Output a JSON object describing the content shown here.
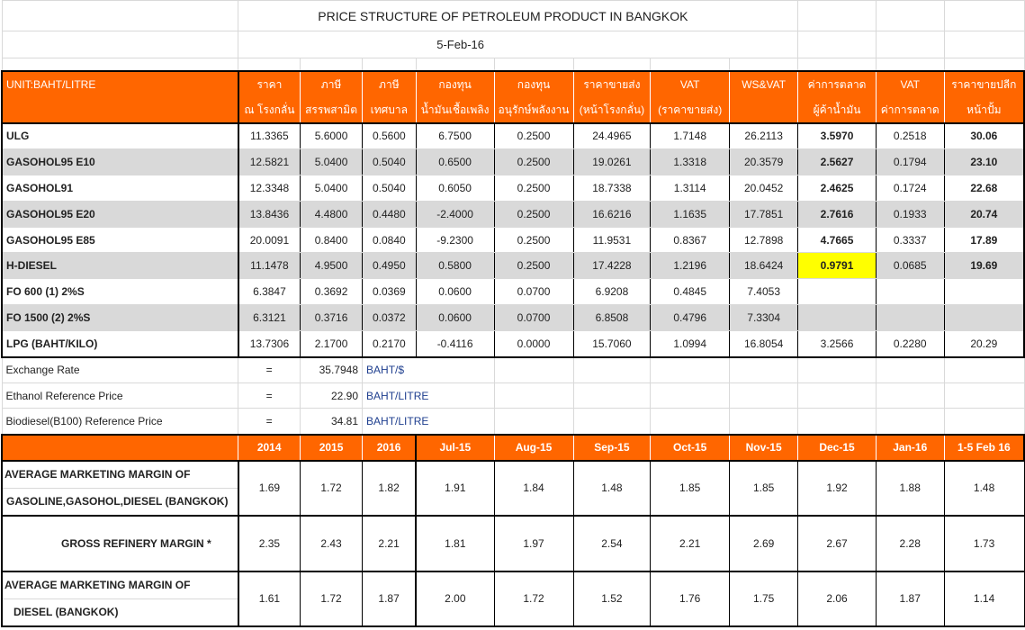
{
  "title": "PRICE STRUCTURE OF PETROLEUM PRODUCT IN BANGKOK",
  "date": "5-Feb-16",
  "colors": {
    "header": "#ff6600",
    "stripe": "#d9d9d9",
    "highlight": "#ffff00"
  },
  "price_table": {
    "headers": [
      [
        "UNIT:BAHT/LITRE",
        ""
      ],
      [
        "ราคา",
        "ณ โรงกลั่น"
      ],
      [
        "ภาษี",
        "สรรพสามิต"
      ],
      [
        "ภาษี",
        "เทศบาล"
      ],
      [
        "กองทุน",
        "น้ำมันเชื้อเพลิง"
      ],
      [
        "กองทุน",
        "อนุรักษ์พลังงาน"
      ],
      [
        "ราคาขายส่ง",
        "(หน้าโรงกลั่น)"
      ],
      [
        "VAT",
        "(ราคาขายส่ง)"
      ],
      [
        "WS&VAT",
        ""
      ],
      [
        "ค่าการตลาด",
        "ผู้ค้าน้ำมัน"
      ],
      [
        "VAT",
        "ค่าการตลาด"
      ],
      [
        "ราคาขายปลีก",
        "หน้าปั้ม"
      ]
    ],
    "rows": [
      [
        "ULG",
        "11.3365",
        "5.6000",
        "0.5600",
        "6.7500",
        "0.2500",
        "24.4965",
        "1.7148",
        "26.2113",
        "3.5970",
        "0.2518",
        "30.06"
      ],
      [
        "GASOHOL95 E10",
        "12.5821",
        "5.0400",
        "0.5040",
        "0.6500",
        "0.2500",
        "19.0261",
        "1.3318",
        "20.3579",
        "2.5627",
        "0.1794",
        "23.10"
      ],
      [
        "GASOHOL91",
        "12.3348",
        "5.0400",
        "0.5040",
        "0.6050",
        "0.2500",
        "18.7338",
        "1.3114",
        "20.0452",
        "2.4625",
        "0.1724",
        "22.68"
      ],
      [
        "GASOHOL95 E20",
        "13.8436",
        "4.4800",
        "0.4480",
        "-2.4000",
        "0.2500",
        "16.6216",
        "1.1635",
        "17.7851",
        "2.7616",
        "0.1933",
        "20.74"
      ],
      [
        "GASOHOL95 E85",
        "20.0091",
        "0.8400",
        "0.0840",
        "-9.2300",
        "0.2500",
        "11.9531",
        "0.8367",
        "12.7898",
        "4.7665",
        "0.3337",
        "17.89"
      ],
      [
        "H-DIESEL",
        "11.1478",
        "4.9500",
        "0.4950",
        "0.5800",
        "0.2500",
        "17.4228",
        "1.2196",
        "18.6424",
        "0.9791",
        "0.0685",
        "19.69"
      ],
      [
        "FO 600 (1) 2%S",
        "6.3847",
        "0.3692",
        "0.0369",
        "0.0600",
        "0.0700",
        "6.9208",
        "0.4845",
        "7.4053",
        "",
        "",
        ""
      ],
      [
        "FO 1500 (2) 2%S",
        "6.3121",
        "0.3716",
        "0.0372",
        "0.0600",
        "0.0700",
        "6.8508",
        "0.4796",
        "7.3304",
        "",
        "",
        ""
      ],
      [
        "LPG (BAHT/KILO)",
        "13.7306",
        "2.1700",
        "0.2170",
        "-0.4116",
        "0.0000",
        "15.7060",
        "1.0994",
        "16.8054",
        "3.2566",
        "0.2280",
        "20.29"
      ]
    ]
  },
  "reference": [
    {
      "label": "Exchange Rate",
      "eq": "=",
      "value": "35.7948",
      "unit": "BAHT/$"
    },
    {
      "label": "Ethanol Reference Price",
      "eq": "=",
      "value": "22.90",
      "unit": "BAHT/LITRE"
    },
    {
      "label": "Biodiesel(B100) Reference Price",
      "eq": "=",
      "value": "34.81",
      "unit": "BAHT/LITRE"
    }
  ],
  "margins": {
    "periods": [
      "2014",
      "2015",
      "2016",
      "Jul-15",
      "Aug-15",
      "Sep-15",
      "Oct-15",
      "Nov-15",
      "Dec-15",
      "Jan-16",
      "1-5 Feb 16"
    ],
    "rows": [
      {
        "label": [
          "AVERAGE MARKETING MARGIN OF",
          "GASOLINE,GASOHOL,DIESEL (BANGKOK)"
        ],
        "values": [
          "1.69",
          "1.72",
          "1.82",
          "1.91",
          "1.84",
          "1.48",
          "1.85",
          "1.85",
          "1.92",
          "1.88",
          "1.48"
        ]
      },
      {
        "label": [
          "GROSS REFINERY MARGIN *"
        ],
        "values": [
          "2.35",
          "2.43",
          "2.21",
          "1.81",
          "1.97",
          "2.54",
          "2.21",
          "2.69",
          "2.67",
          "2.28",
          "1.73"
        ]
      },
      {
        "label": [
          "AVERAGE MARKETING MARGIN OF",
          "DIESEL (BANGKOK)"
        ],
        "values": [
          "1.61",
          "1.72",
          "1.87",
          "2.00",
          "1.72",
          "1.52",
          "1.76",
          "1.75",
          "2.06",
          "1.87",
          "1.14"
        ]
      }
    ]
  }
}
